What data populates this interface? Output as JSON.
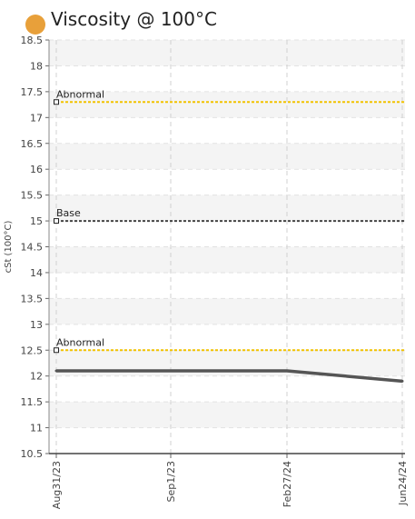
{
  "header": {
    "title": "Viscosity @ 100°C",
    "status_color": "#E8A03A"
  },
  "chart_data": {
    "type": "line",
    "title": "Viscosity @ 100°C",
    "xlabel": "",
    "ylabel": "cSt (100°C)",
    "ylim": [
      10.5,
      18.5
    ],
    "y_ticks": [
      10.5,
      11,
      11.5,
      12,
      12.5,
      13,
      13.5,
      14,
      14.5,
      15,
      15.5,
      16,
      16.5,
      17,
      17.5,
      18,
      18.5
    ],
    "y_tick_labels": [
      "10.5",
      "11",
      "11.5",
      "12",
      "12.5",
      "13",
      "13.5",
      "14",
      "14.5",
      "15",
      "15.5",
      "16",
      "16.5",
      "17",
      "17.5",
      "18",
      "18.5"
    ],
    "x_tick_labels": [
      "Aug31/23",
      "Sep1/23",
      "Feb27/24",
      "Jun24/24"
    ],
    "grid": true,
    "series": [
      {
        "values": [
          12.1,
          12.1,
          12.1,
          11.9
        ],
        "color": "#555555"
      }
    ],
    "reference_lines": [
      {
        "label": "Abnormal",
        "value": 17.3,
        "color": "#F2C200"
      },
      {
        "label": "Base",
        "value": 15.0,
        "color": "#444444"
      },
      {
        "label": "Abnormal",
        "value": 12.5,
        "color": "#F2C200"
      }
    ]
  }
}
